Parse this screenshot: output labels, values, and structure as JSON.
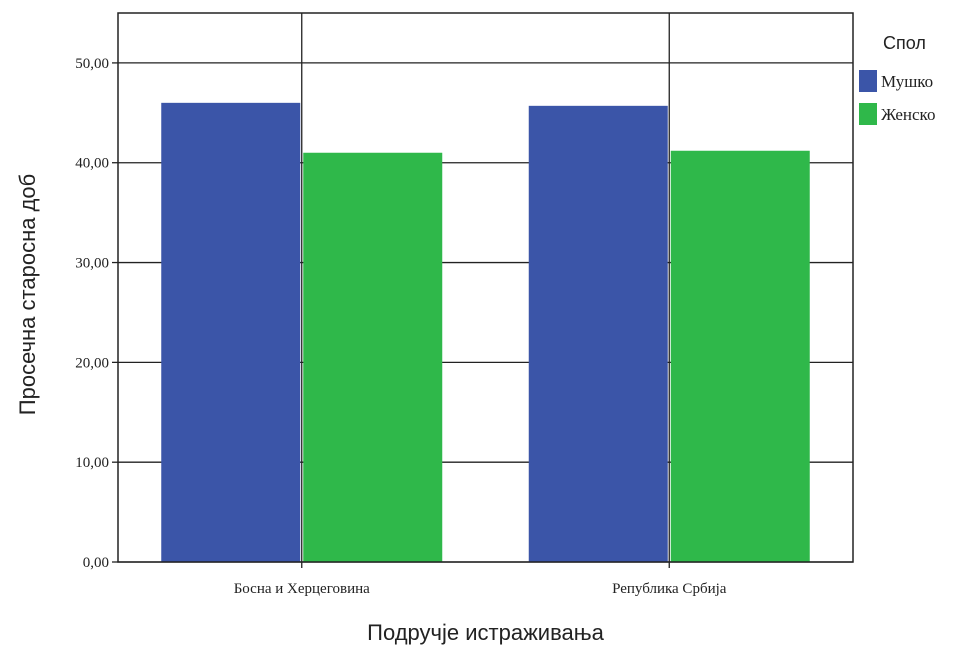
{
  "chart_data": {
    "type": "bar",
    "categories": [
      "Босна и Херцеговина",
      "Република Србија"
    ],
    "series": [
      {
        "name": "Мушко",
        "values": [
          46.0,
          45.7
        ],
        "color": "#3b55a8"
      },
      {
        "name": "Женско",
        "values": [
          41.0,
          41.2
        ],
        "color": "#2fb84a"
      }
    ],
    "xlabel": "Подручје истраживања",
    "ylabel": "Просечна старосна доб",
    "ylim": [
      0,
      55
    ],
    "yticks": [
      0,
      10,
      20,
      30,
      40,
      50
    ],
    "ytick_labels": [
      "0,00",
      "10,00",
      "20,00",
      "30,00",
      "40,00",
      "50,00"
    ],
    "legend_title": "Спол",
    "legend_position": "top-right-outside",
    "grid": true
  }
}
